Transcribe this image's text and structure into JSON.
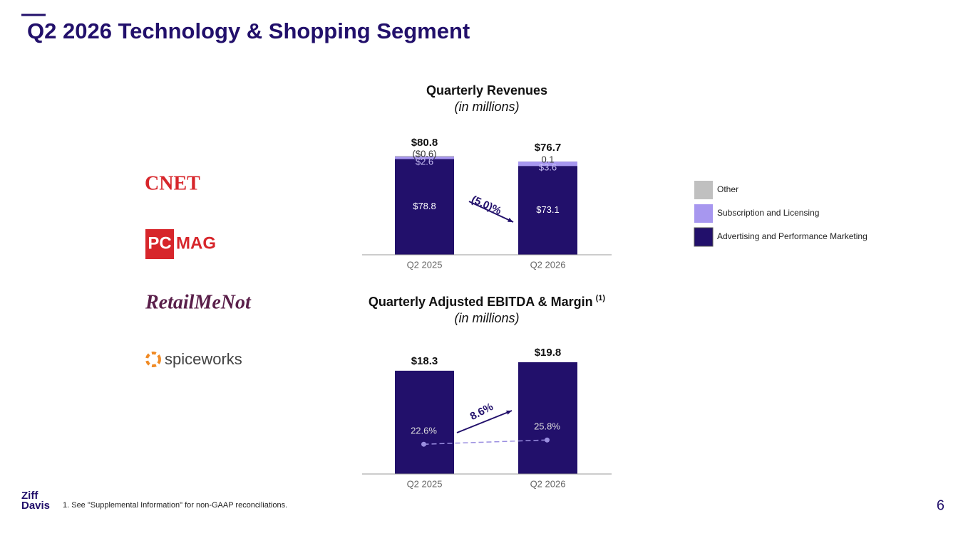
{
  "title": "Q2 2026 Technology & Shopping Segment",
  "brands": {
    "cnet": "CNET",
    "pcmag": [
      "PC",
      "MAG"
    ],
    "retailmenot": "RetailMeNot",
    "spiceworks": "spiceworks"
  },
  "footnote": "1.   See \"Supplemental Information\" for non-GAAP reconciliations.",
  "logo": [
    "Ziff",
    "Davis"
  ],
  "page_number": "6",
  "chart_data": [
    {
      "type": "stacked_bar",
      "title": "Quarterly Revenues",
      "subtitle": "(in millions)",
      "categories": [
        "Q2 2025",
        "Q2 2026"
      ],
      "series": [
        {
          "name": "Advertising and Performance Marketing",
          "color": "#22106b",
          "values": [
            78.8,
            73.1
          ],
          "value_labels": [
            "$78.8",
            "$73.1"
          ]
        },
        {
          "name": "Subscription and Licensing",
          "color": "#a797ef",
          "values": [
            2.6,
            3.6
          ],
          "value_labels": [
            "$2.6",
            "$3.6"
          ]
        },
        {
          "name": "Other",
          "color": "#c0c0c0",
          "values": [
            -0.6,
            0.1
          ],
          "value_labels": [
            "($0.6)",
            "0.1"
          ]
        }
      ],
      "totals": [
        80.8,
        76.7
      ],
      "total_labels": [
        "$80.8",
        "$76.7"
      ],
      "annotation": "(5.0)%",
      "legend": "right"
    },
    {
      "type": "bar_line",
      "title": "Quarterly Adjusted EBITDA & Margin",
      "title_note": "(1)",
      "subtitle": "(in millions)",
      "categories": [
        "Q2 2025",
        "Q2 2026"
      ],
      "series": [
        {
          "color": "#22106b",
          "values": [
            18.3,
            19.8
          ],
          "value_labels": [
            "$18.3",
            "$19.8"
          ]
        },
        {
          "color": "#9a8ee0",
          "values": [
            22.6,
            25.8
          ],
          "value_labels": [
            "22.6%",
            "25.8%"
          ],
          "axis": "y2"
        }
      ],
      "annotation": "8.6%"
    }
  ]
}
